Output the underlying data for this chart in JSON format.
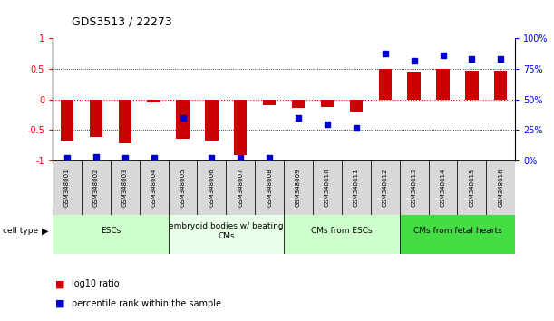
{
  "title": "GDS3513 / 22273",
  "samples": [
    "GSM348001",
    "GSM348002",
    "GSM348003",
    "GSM348004",
    "GSM348005",
    "GSM348006",
    "GSM348007",
    "GSM348008",
    "GSM348009",
    "GSM348010",
    "GSM348011",
    "GSM348012",
    "GSM348013",
    "GSM348014",
    "GSM348015",
    "GSM348016"
  ],
  "log10_ratio": [
    -0.68,
    -0.62,
    -0.72,
    -0.05,
    -0.65,
    -0.68,
    -0.91,
    -0.1,
    -0.14,
    -0.12,
    -0.2,
    0.5,
    0.45,
    0.5,
    0.47,
    0.47
  ],
  "percentile_rank": [
    2,
    3,
    2,
    2,
    35,
    2,
    2,
    2,
    35,
    30,
    27,
    88,
    82,
    86,
    83,
    83
  ],
  "cell_types": [
    {
      "label": "ESCs",
      "start": 0,
      "end": 4,
      "color": "#ccffcc"
    },
    {
      "label": "embryoid bodies w/ beating\nCMs",
      "start": 4,
      "end": 8,
      "color": "#e8ffe8"
    },
    {
      "label": "CMs from ESCs",
      "start": 8,
      "end": 12,
      "color": "#ccffcc"
    },
    {
      "label": "CMs from fetal hearts",
      "start": 12,
      "end": 16,
      "color": "#44dd44"
    }
  ],
  "bar_color": "#cc0000",
  "dot_color": "#0000cc",
  "ylim_left": [
    -1.0,
    1.0
  ],
  "ylim_right": [
    0,
    100
  ],
  "yticks_left": [
    -1.0,
    -0.5,
    0.0,
    0.5,
    1.0
  ],
  "ytick_labels_left": [
    "-1",
    "-0.5",
    "0",
    "0.5",
    "1"
  ],
  "yticks_right": [
    0,
    25,
    50,
    75,
    100
  ],
  "ytick_labels_right": [
    "0%",
    "25%",
    "50%",
    "75%",
    "100%"
  ],
  "hline_dotted": [
    -0.5,
    0.0,
    0.5
  ],
  "legend_items": [
    {
      "color": "#cc0000",
      "label": "log10 ratio"
    },
    {
      "color": "#0000cc",
      "label": "percentile rank within the sample"
    }
  ],
  "bg_color": "#ffffff",
  "chart_border_color": "#000000"
}
